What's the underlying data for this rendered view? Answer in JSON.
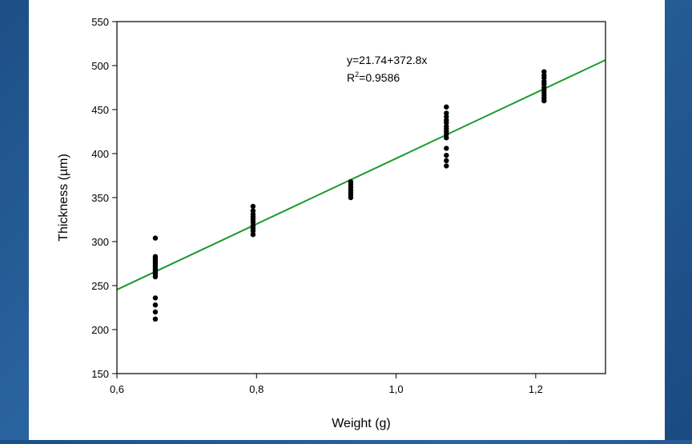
{
  "chart_data": {
    "type": "scatter",
    "xlabel": "Weight (g)",
    "ylabel": "Thickness (µm)",
    "xlim": [
      0.6,
      1.3
    ],
    "ylim": [
      150,
      550
    ],
    "xticks": [
      0.6,
      0.8,
      1.0,
      1.2
    ],
    "xtick_labels": [
      "0,6",
      "0,8",
      "1,0",
      "1,2"
    ],
    "yticks": [
      150,
      200,
      250,
      300,
      350,
      400,
      450,
      500,
      550
    ],
    "ytick_labels": [
      "150",
      "200",
      "250",
      "300",
      "350",
      "400",
      "450",
      "500",
      "550"
    ],
    "grid": false,
    "colors": {
      "points": "#000000",
      "fit_line": "#1a9a2a",
      "background": "#1f5690"
    },
    "fit_line": {
      "intercept": 21.74,
      "slope": 372.8
    },
    "annotation": {
      "equation": "y=21.74+372.8x",
      "r2_prefix": "R",
      "r2_sup": "2",
      "r2_value": "=0.9586"
    },
    "groups": [
      {
        "x": 0.655,
        "y": [
          304,
          283,
          281,
          279,
          277,
          275,
          273,
          271,
          269,
          267,
          265,
          263,
          260,
          236,
          228,
          220,
          212
        ]
      },
      {
        "x": 0.795,
        "y": [
          340,
          335,
          331,
          328,
          325,
          322,
          318,
          315,
          312,
          308
        ]
      },
      {
        "x": 0.935,
        "y": [
          368,
          365,
          362,
          359,
          356,
          353,
          350
        ]
      },
      {
        "x": 1.072,
        "y": [
          453,
          446,
          442,
          438,
          435,
          431,
          428,
          425,
          422,
          418,
          406,
          398,
          392,
          386
        ]
      },
      {
        "x": 1.212,
        "y": [
          493,
          489,
          486,
          482,
          479,
          475,
          472,
          469,
          466,
          463,
          460
        ]
      }
    ]
  }
}
